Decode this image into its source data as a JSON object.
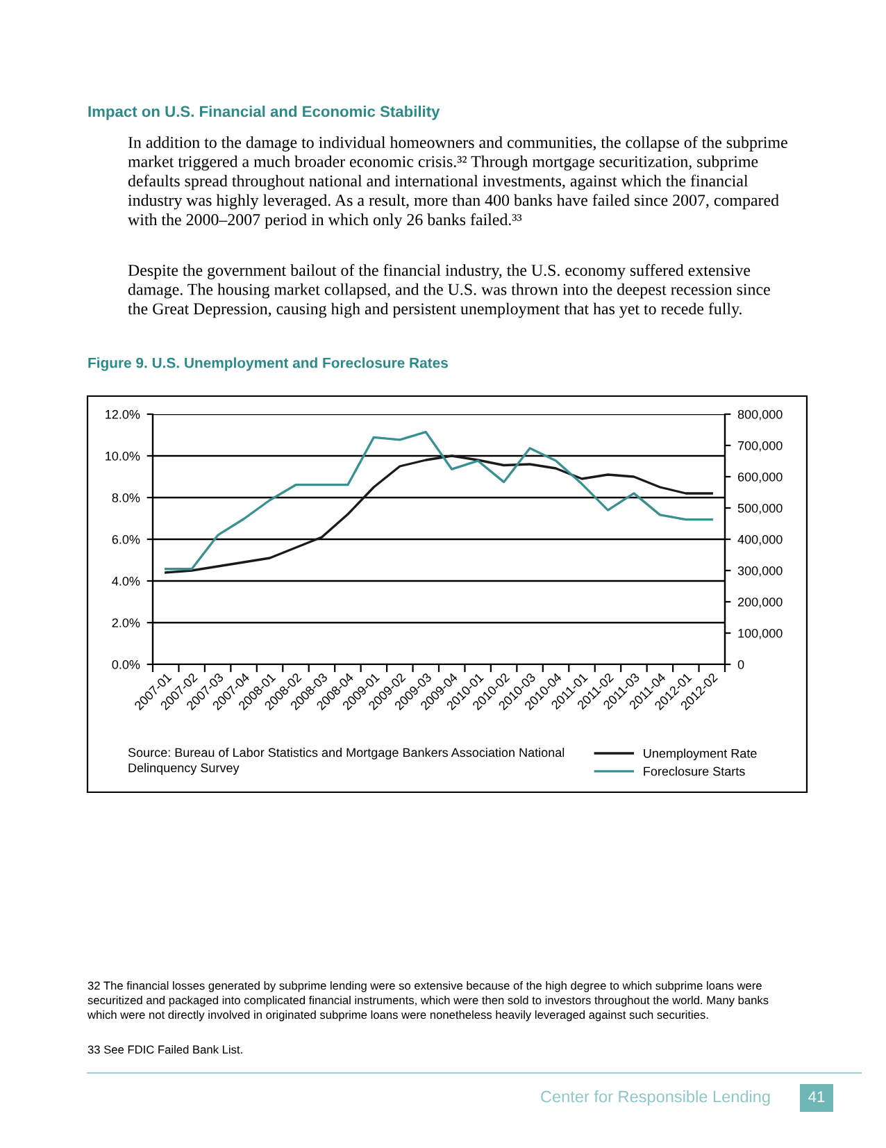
{
  "chart_data": {
    "type": "line",
    "title": "Figure 9. U.S. Unemployment and Foreclosure Rates",
    "categories": [
      "2007-01",
      "2007-02",
      "2007-03",
      "2007-04",
      "2008-01",
      "2008-02",
      "2008-03",
      "2008-04",
      "2009-01",
      "2009-02",
      "2009-03",
      "2009-04",
      "2010-01",
      "2010-02",
      "2010-03",
      "2010-04",
      "2011-01",
      "2011-02",
      "2011-03",
      "2011-04",
      "2012-01",
      "2012-02"
    ],
    "series": [
      {
        "name": "Unemployment Rate",
        "color": "#1a1a1a",
        "values": [
          4.4,
          4.5,
          4.7,
          4.9,
          5.1,
          5.6,
          6.1,
          7.2,
          8.5,
          9.5,
          9.8,
          10.0,
          9.8,
          9.55,
          9.6,
          9.4,
          8.9,
          9.1,
          9.0,
          8.5,
          8.2,
          8.2
        ]
      },
      {
        "name": "Foreclosure Starts",
        "color": "#3a9090",
        "axis": "y2",
        "values": [
          305000,
          305000,
          413000,
          465000,
          525000,
          574000,
          574000,
          574000,
          726000,
          718000,
          743000,
          624000,
          651000,
          583000,
          691000,
          651000,
          577000,
          493000,
          547000,
          478000,
          463000,
          463000
        ]
      }
    ],
    "ylim": [
      0,
      12
    ],
    "yticks": [
      {
        "value": 0,
        "label": "0.0%"
      },
      {
        "value": 2,
        "label": "2.0%"
      },
      {
        "value": 4,
        "label": "4.0%"
      },
      {
        "value": 6,
        "label": "6.0%"
      },
      {
        "value": 8,
        "label": "8.0%"
      },
      {
        "value": 10,
        "label": "10.0%"
      },
      {
        "value": 12,
        "label": "12.0%"
      }
    ],
    "y2lim": [
      0,
      800000
    ],
    "y2ticks": [
      0,
      {
        "value": 100000,
        "label": "100,000"
      },
      {
        "value": 200000,
        "label": "200,000"
      },
      {
        "value": 300000,
        "label": "300,000"
      },
      {
        "value": 400000,
        "label": "400,000"
      },
      {
        "value": 500000,
        "label": "500,000"
      },
      {
        "value": 600000,
        "label": "600,000"
      },
      {
        "value": 700000,
        "label": "700,000"
      },
      {
        "value": 800000,
        "label": "800,000"
      }
    ],
    "grid": "y",
    "legend": "bottom right",
    "marker": "none",
    "line_style": "solid",
    "annotations": [
      "Impact on U.S. Financial and Economic Stability",
      "In addition to the damage to individual homeowners and communities, the collapse of the subprime market triggered a much broader economic crisis.³² Through mortgage securitization, subprime defaults spread throughout national and international investments, against which the financial industry was highly leveraged. As a result, more than 400 banks have failed since 2007, compared with the 2000–2007 period in which only 26 banks failed.³³",
      "Despite the government bailout of the financial industry, the U.S. economy suffered extensive damage. The housing market collapsed, and the U.S. was thrown into the deepest recession since the Great Depression, causing high and persistent unemployment that has yet to recede fully.",
      "Source: Bureau of Labor Statistics and Mortgage Bankers Association National Delinquency Survey",
      "32 The financial losses generated by subprime lending were so extensive because of the high degree to which subprime loans were securitized and packaged into complicated financial instruments, which were then sold to investors throughout the world. Many banks which were not directly involved in originated subprime loans were nonetheless heavily leveraged against such securities.",
      "33 See FDIC Failed Bank List.",
      "Center for Responsible Lending",
      "41"
    ]
  }
}
